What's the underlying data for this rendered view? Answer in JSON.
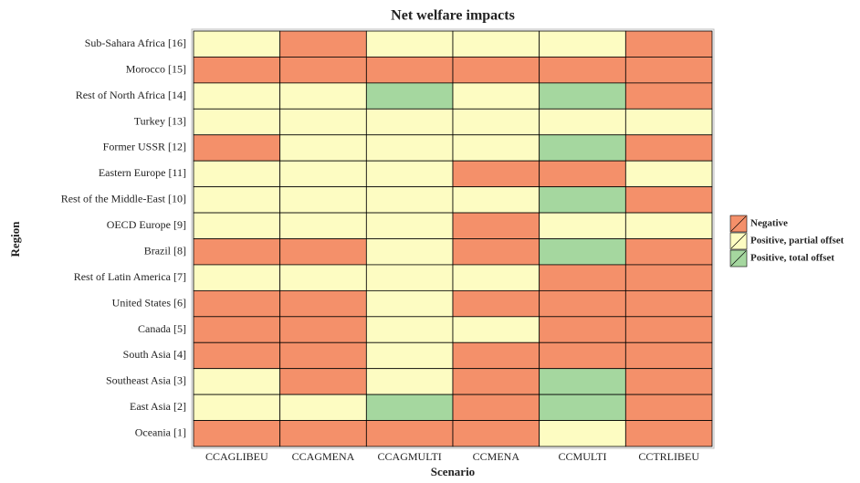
{
  "chart_data": {
    "type": "heatmap",
    "title": "Net welfare impacts",
    "x_label": "Scenario",
    "y_label": "Region",
    "x_categories": [
      "CCAGLIBEU",
      "CCAGMENA",
      "CCAGMULTI",
      "CCMENA",
      "CCMULTI",
      "CCTRLIBEU"
    ],
    "y_categories": [
      "Sub-Sahara Africa [16]",
      "Morocco [15]",
      "Rest of North Africa [14]",
      "Turkey [13]",
      "Former USSR [12]",
      "Eastern Europe [11]",
      "Rest of the Middle-East [10]",
      "OECD Europe [9]",
      "Brazil [8]",
      "Rest of Latin America [7]",
      "United States [6]",
      "Canada [5]",
      "South Asia [4]",
      "Southeast Asia [3]",
      "East Asia [2]",
      "Oceania [1]"
    ],
    "legend": [
      {
        "name": "Negative",
        "color": "#f4906a"
      },
      {
        "name": "Positive, partial offset",
        "color": "#fdfcc2"
      },
      {
        "name": "Positive, total offset",
        "color": "#a5d79f"
      }
    ],
    "values": [
      [
        1,
        0,
        1,
        1,
        1,
        0
      ],
      [
        0,
        0,
        0,
        0,
        0,
        0
      ],
      [
        1,
        1,
        2,
        1,
        2,
        0
      ],
      [
        1,
        1,
        1,
        1,
        1,
        1
      ],
      [
        0,
        1,
        1,
        1,
        2,
        0
      ],
      [
        1,
        1,
        1,
        0,
        0,
        1
      ],
      [
        1,
        1,
        1,
        1,
        2,
        0
      ],
      [
        1,
        1,
        1,
        0,
        1,
        1
      ],
      [
        0,
        0,
        1,
        0,
        2,
        0
      ],
      [
        1,
        1,
        1,
        1,
        0,
        0
      ],
      [
        0,
        0,
        1,
        0,
        0,
        0
      ],
      [
        0,
        0,
        1,
        1,
        0,
        0
      ],
      [
        0,
        0,
        1,
        0,
        0,
        0
      ],
      [
        1,
        0,
        1,
        0,
        2,
        0
      ],
      [
        1,
        1,
        2,
        0,
        2,
        0
      ],
      [
        0,
        0,
        0,
        0,
        1,
        0
      ]
    ]
  }
}
